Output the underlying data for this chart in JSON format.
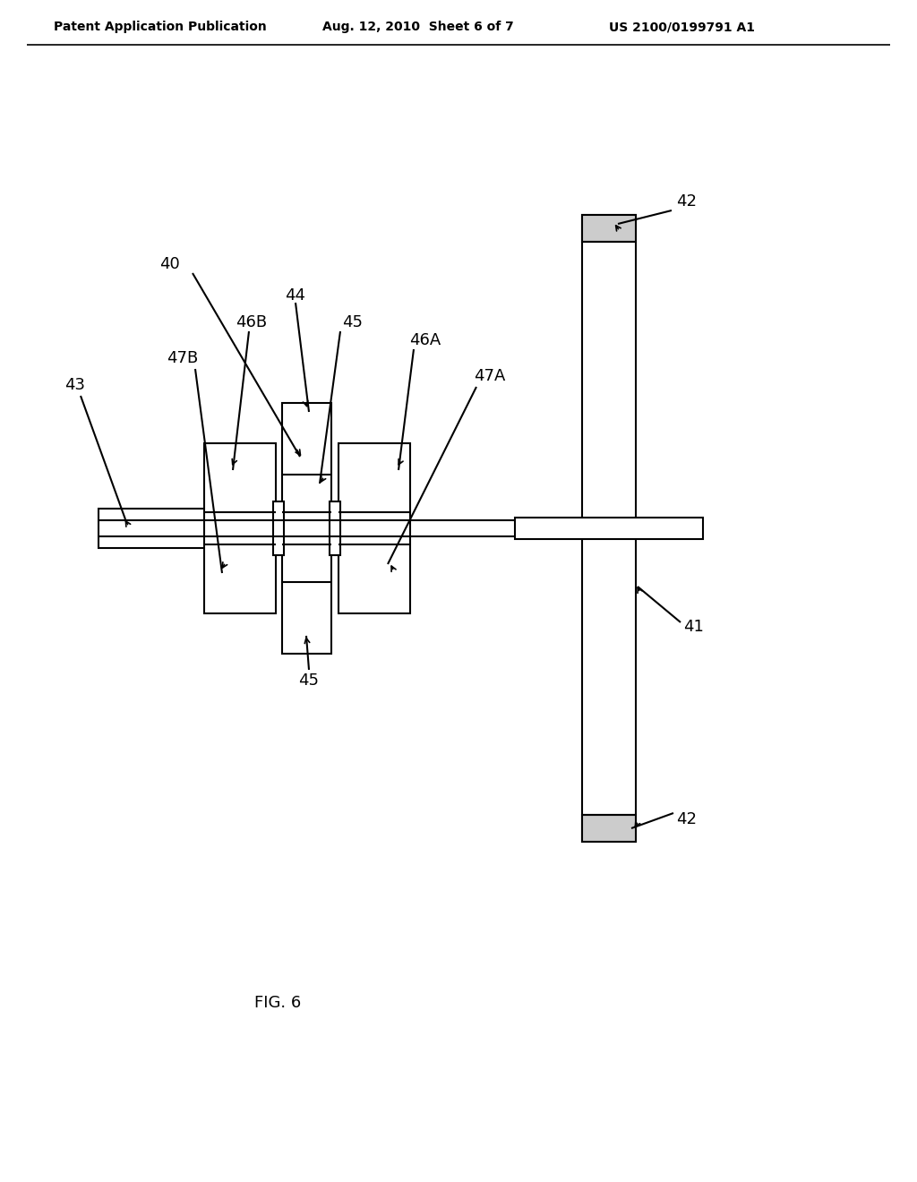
{
  "bg_color": "#ffffff",
  "line_color": "#000000",
  "header_left": "Patent Application Publication",
  "header_mid": "Aug. 12, 2010  Sheet 6 of 7",
  "header_right": "US 2100/0199791 A1",
  "fig_label": "FIG. 6"
}
